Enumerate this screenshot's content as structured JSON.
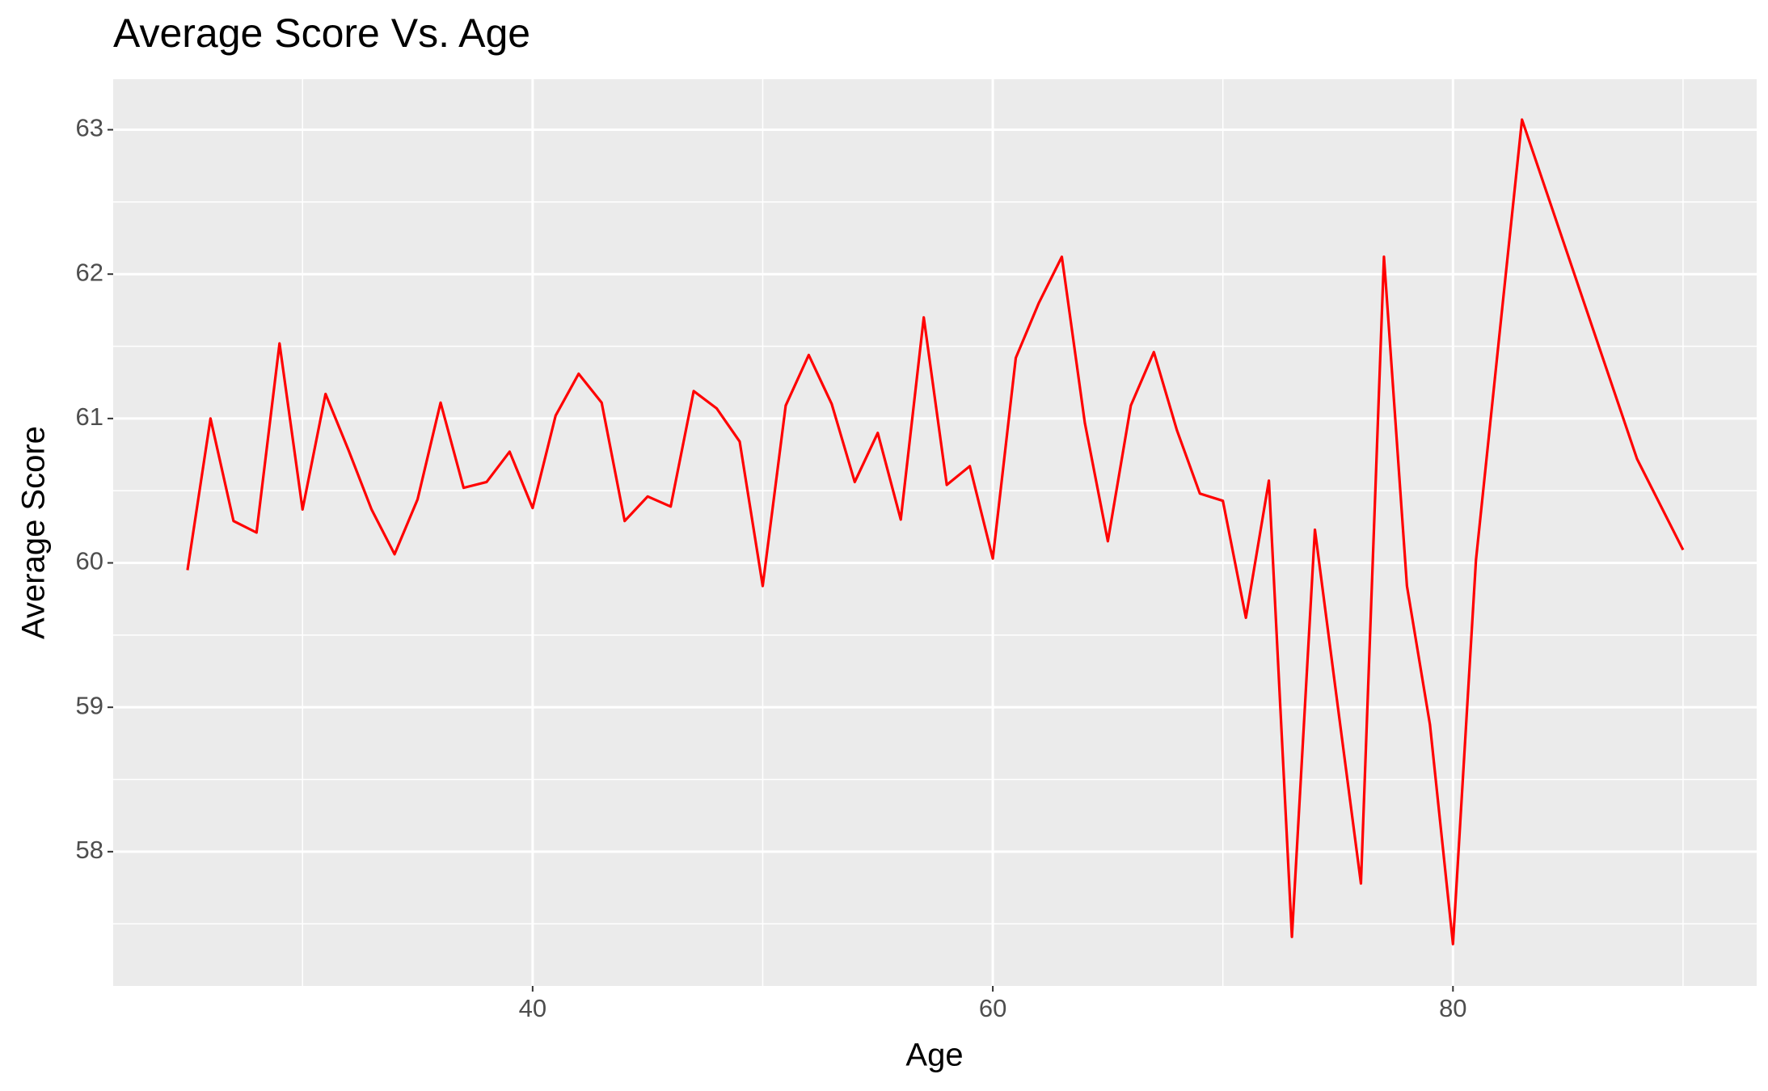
{
  "chart_data": {
    "type": "line",
    "title": "Average Score Vs. Age",
    "x_label": "Age",
    "y_label": "Average Score",
    "x": [
      25,
      26,
      27,
      28,
      29,
      30,
      31,
      32,
      33,
      34,
      35,
      36,
      37,
      38,
      39,
      40,
      41,
      42,
      43,
      44,
      45,
      46,
      47,
      48,
      49,
      50,
      51,
      52,
      53,
      54,
      55,
      56,
      57,
      58,
      59,
      60,
      61,
      62,
      63,
      64,
      65,
      66,
      67,
      68,
      69,
      70,
      71,
      72,
      73,
      74,
      75,
      76,
      77,
      78,
      79,
      80,
      81,
      82,
      83,
      88,
      90
    ],
    "series": [
      {
        "name": "Average Score",
        "color": "#ff0000",
        "values": [
          59.95,
          61.0,
          60.29,
          60.21,
          61.52,
          60.37,
          61.17,
          60.78,
          60.37,
          60.06,
          60.44,
          61.11,
          60.52,
          60.56,
          60.77,
          60.38,
          61.02,
          61.31,
          61.11,
          60.29,
          60.46,
          60.39,
          61.19,
          61.07,
          60.84,
          59.84,
          61.09,
          61.44,
          61.1,
          60.56,
          60.9,
          60.3,
          61.7,
          60.54,
          60.67,
          60.03,
          61.42,
          61.8,
          62.12,
          60.97,
          60.15,
          61.09,
          61.46,
          60.92,
          60.48,
          60.43,
          59.62,
          60.57,
          57.41,
          60.23,
          59.0,
          57.78,
          62.12,
          59.84,
          58.88,
          57.36,
          60.02,
          61.55,
          63.07,
          60.72,
          60.09
        ]
      }
    ],
    "xlim": [
      21.77,
      93.2
    ],
    "ylim": [
      57.07,
      63.35
    ],
    "xticks": [
      40,
      60,
      80
    ],
    "yticks": [
      58,
      59,
      60,
      61,
      62,
      63
    ],
    "x_minor_ticks": [
      30,
      50,
      70,
      90
    ],
    "y_minor_ticks": [
      57.5,
      58.5,
      59.5,
      60.5,
      61.5,
      62.5
    ],
    "grid": true
  }
}
